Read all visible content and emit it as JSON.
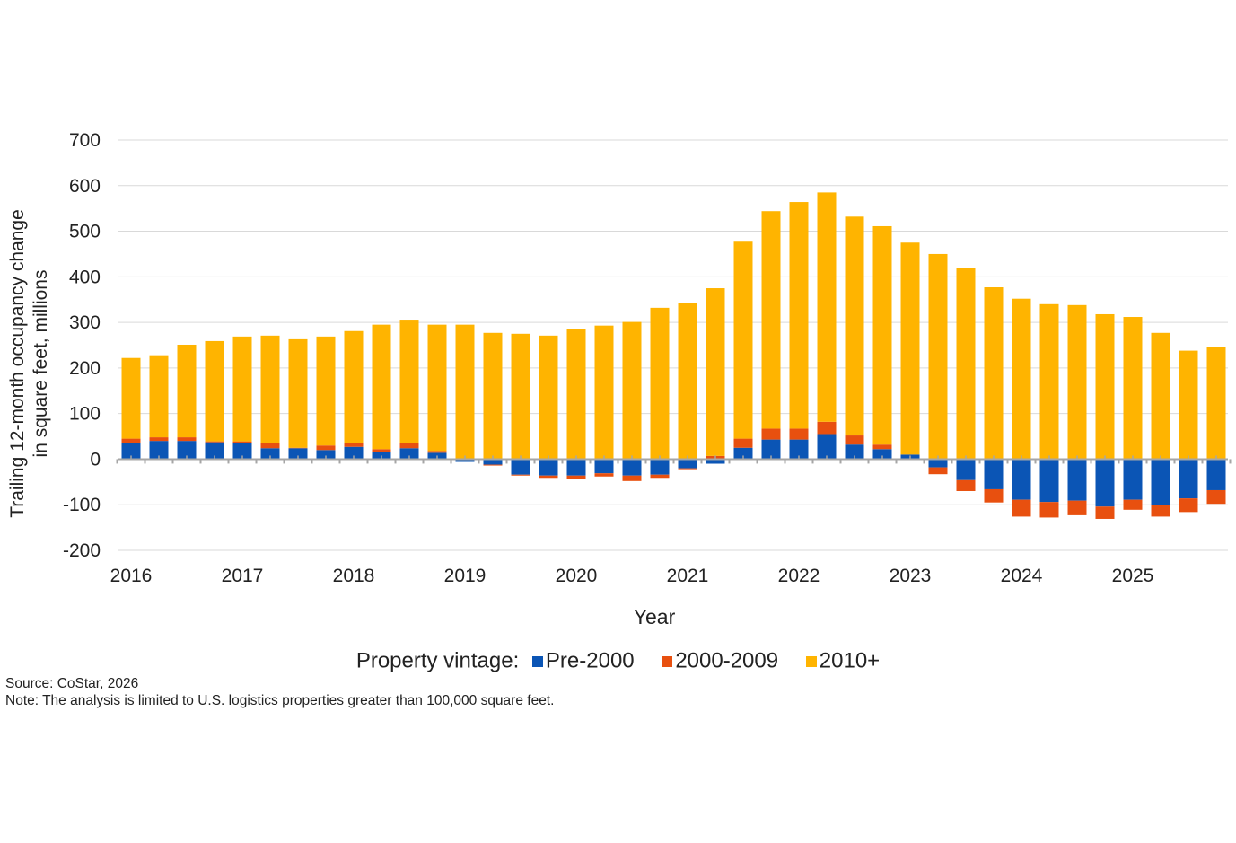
{
  "chart_data": {
    "type": "bar",
    "stacked": true,
    "title": "",
    "xlabel": "Year",
    "ylabel": [
      "Trailing 12-month occupancy change",
      "in square feet, millions"
    ],
    "ylim": [
      -200,
      700
    ],
    "yticks": [
      700,
      600,
      500,
      400,
      300,
      200,
      100,
      0,
      -100,
      -200
    ],
    "xtick_labels": [
      "2016",
      "2017",
      "2018",
      "2019",
      "2020",
      "2021",
      "2022",
      "2023",
      "2024",
      "2025"
    ],
    "grid": true,
    "legend_position": "bottom",
    "legend_title": "Property vintage:",
    "categories": [
      "2016 Q1",
      "2016 Q2",
      "2016 Q3",
      "2016 Q4",
      "2017 Q1",
      "2017 Q2",
      "2017 Q3",
      "2017 Q4",
      "2018 Q1",
      "2018 Q2",
      "2018 Q3",
      "2018 Q4",
      "2019 Q1",
      "2019 Q2",
      "2019 Q3",
      "2019 Q4",
      "2020 Q1",
      "2020 Q2",
      "2020 Q3",
      "2020 Q4",
      "2021 Q1",
      "2021 Q2",
      "2021 Q3",
      "2021 Q4",
      "2022 Q1",
      "2022 Q2",
      "2022 Q3",
      "2022 Q4",
      "2023 Q1",
      "2023 Q2",
      "2023 Q3",
      "2023 Q4",
      "2024 Q1",
      "2024 Q2",
      "2024 Q3",
      "2024 Q4",
      "2025 Q1",
      "2025 Q2",
      "2025 Q3",
      "2025 Q4"
    ],
    "series": [
      {
        "name": "Pre-2000",
        "color": "#0b55b5",
        "values": [
          35,
          40,
          40,
          37,
          35,
          24,
          24,
          20,
          27,
          16,
          24,
          14,
          -6,
          -12,
          -34,
          -36,
          -36,
          -31,
          -36,
          -34,
          -20,
          -10,
          25,
          43,
          43,
          55,
          32,
          22,
          10,
          -18,
          -46,
          -66,
          -89,
          -94,
          -91,
          -104,
          -89,
          -101,
          -86,
          -68
        ]
      },
      {
        "name": "2000-2009",
        "color": "#e8500f",
        "values": [
          10,
          8,
          8,
          2,
          4,
          11,
          1,
          10,
          8,
          6,
          11,
          4,
          0,
          -2,
          -2,
          -5,
          -7,
          -7,
          -12,
          -7,
          -2,
          7,
          20,
          24,
          24,
          27,
          20,
          10,
          0,
          -15,
          -24,
          -29,
          -37,
          -34,
          -32,
          -27,
          -22,
          -25,
          -30,
          -30
        ]
      },
      {
        "name": "2010+",
        "color": "#ffb400",
        "values": [
          177,
          180,
          203,
          220,
          230,
          236,
          238,
          239,
          246,
          273,
          271,
          277,
          295,
          277,
          275,
          271,
          285,
          293,
          301,
          332,
          342,
          368,
          432,
          477,
          497,
          503,
          480,
          479,
          465,
          450,
          420,
          377,
          352,
          340,
          338,
          318,
          312,
          277,
          238,
          246
        ]
      }
    ]
  },
  "notes": {
    "source": "Source: CoStar, 2026",
    "note": "Note: The analysis is limited to U.S. logistics properties greater than 100,000 square feet."
  }
}
